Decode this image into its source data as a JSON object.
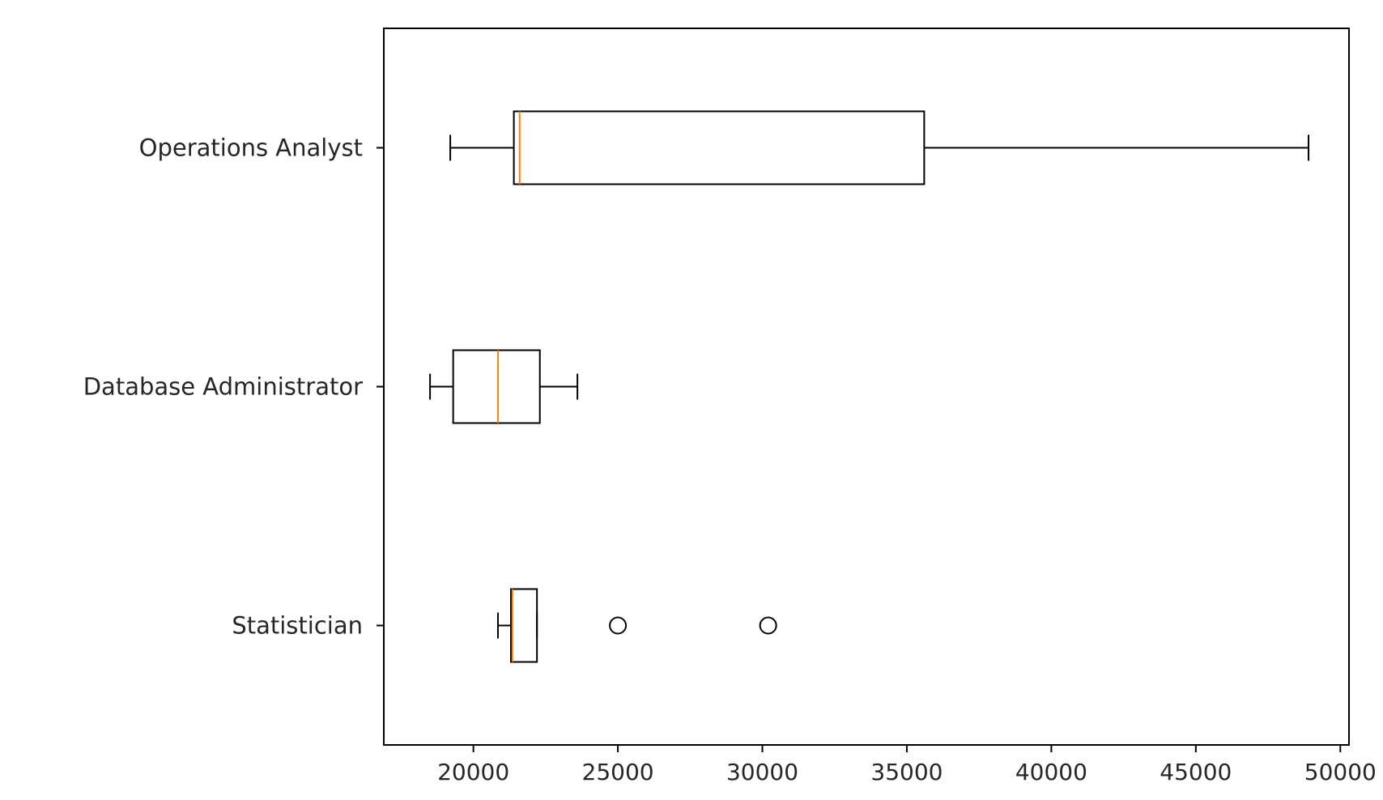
{
  "chart_data": {
    "type": "boxplot",
    "orientation": "horizontal",
    "title": "",
    "xlabel": "",
    "ylabel": "",
    "xlim": [
      16900,
      50300
    ],
    "xticks": [
      {
        "value": 20000,
        "label": "20000"
      },
      {
        "value": 25000,
        "label": "25000"
      },
      {
        "value": 30000,
        "label": "30000"
      },
      {
        "value": 35000,
        "label": "35000"
      },
      {
        "value": 40000,
        "label": "40000"
      },
      {
        "value": 45000,
        "label": "45000"
      },
      {
        "value": 50000,
        "label": "50000"
      }
    ],
    "categories": [
      "Operations Analyst",
      "Database Administrator",
      "Statistician"
    ],
    "boxes": [
      {
        "label": "Operations Analyst",
        "whisker_low": 19200,
        "q1": 21400,
        "median": 21600,
        "q3": 35600,
        "whisker_high": 48900,
        "outliers": []
      },
      {
        "label": "Database Administrator",
        "whisker_low": 18500,
        "q1": 19300,
        "median": 20850,
        "q3": 22300,
        "whisker_high": 23600,
        "outliers": []
      },
      {
        "label": "Statistician",
        "whisker_low": 20850,
        "q1": 21300,
        "median": 21350,
        "q3": 22200,
        "whisker_high": 22200,
        "outliers": [
          25000,
          30200
        ]
      }
    ],
    "grid": false,
    "legend": "none",
    "colors": {
      "box": "#000000",
      "median": "#ff7f0e",
      "axis": "#000000",
      "text": "#262626"
    }
  }
}
